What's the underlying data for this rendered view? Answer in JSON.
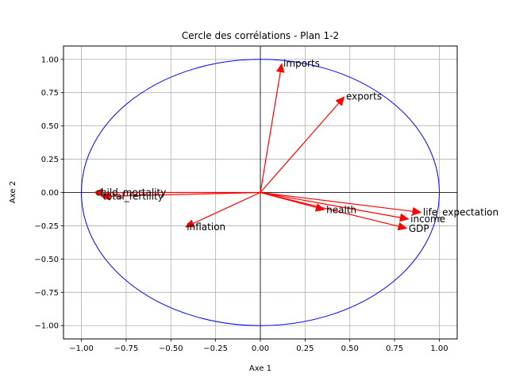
{
  "chart_data": {
    "type": "scatter",
    "title": "Cercle des corrélations - Plan 1-2",
    "xlabel": "Axe 1",
    "ylabel": "Axe 2",
    "xlim": [
      -1.1,
      1.1
    ],
    "ylim": [
      -1.1,
      1.1
    ],
    "grid": true,
    "x_ticks": [
      -1.0,
      -0.75,
      -0.5,
      -0.25,
      0.0,
      0.25,
      0.5,
      0.75,
      1.0
    ],
    "y_ticks": [
      -1.0,
      -0.75,
      -0.5,
      -0.25,
      0.0,
      0.25,
      0.5,
      0.75,
      1.0
    ],
    "x_tick_labels": [
      "−1.00",
      "−0.75",
      "−0.50",
      "−0.25",
      "0.00",
      "0.25",
      "0.50",
      "0.75",
      "1.00"
    ],
    "y_tick_labels": [
      "−1.00",
      "−0.75",
      "−0.50",
      "−0.25",
      "0.00",
      "0.25",
      "0.50",
      "0.75",
      "1.00"
    ],
    "circle_radius": 1.0,
    "circle_color": "#0000ff",
    "arrow_color": "#ff0000",
    "vectors": [
      {
        "name": "imports",
        "x": 0.12,
        "y": 0.97
      },
      {
        "name": "exports",
        "x": 0.47,
        "y": 0.72
      },
      {
        "name": "child_mortality",
        "x": -0.93,
        "y": 0.0
      },
      {
        "name": "total_fertility",
        "x": -0.89,
        "y": -0.03
      },
      {
        "name": "inflation",
        "x": -0.42,
        "y": -0.26
      },
      {
        "name": "health",
        "x": 0.36,
        "y": -0.13
      },
      {
        "name": "life_expectation",
        "x": 0.9,
        "y": -0.15
      },
      {
        "name": "income",
        "x": 0.83,
        "y": -0.2
      },
      {
        "name": "GDP",
        "x": 0.82,
        "y": -0.27
      }
    ]
  }
}
